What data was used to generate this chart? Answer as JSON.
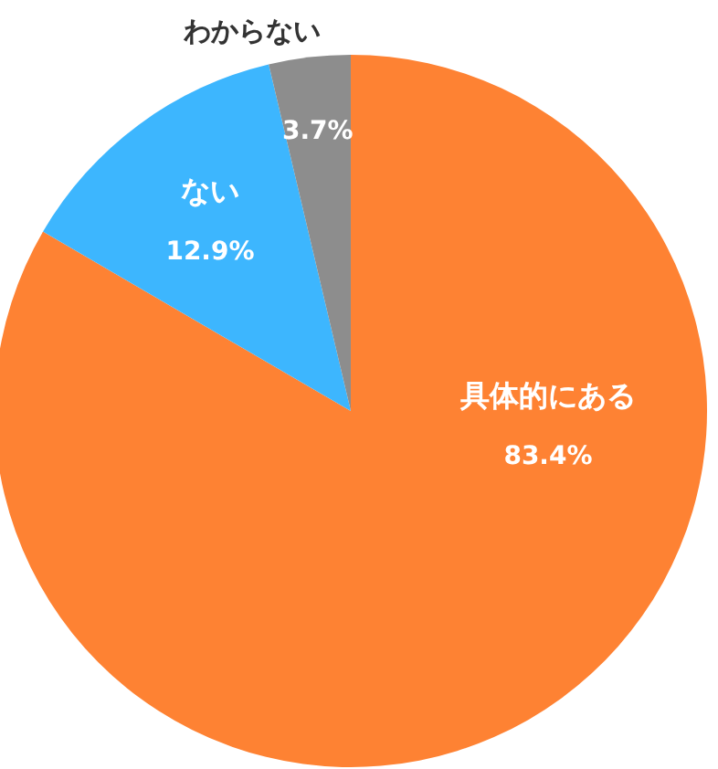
{
  "chart_data": {
    "type": "pie",
    "categories": [
      "具体的にある",
      "ない",
      "わからない"
    ],
    "values": [
      83.4,
      12.9,
      3.7
    ],
    "colors": [
      "#fe8233",
      "#3db6fe",
      "#8d8d8d"
    ],
    "value_labels": [
      "83.4%",
      "12.9%",
      "3.7%"
    ]
  }
}
